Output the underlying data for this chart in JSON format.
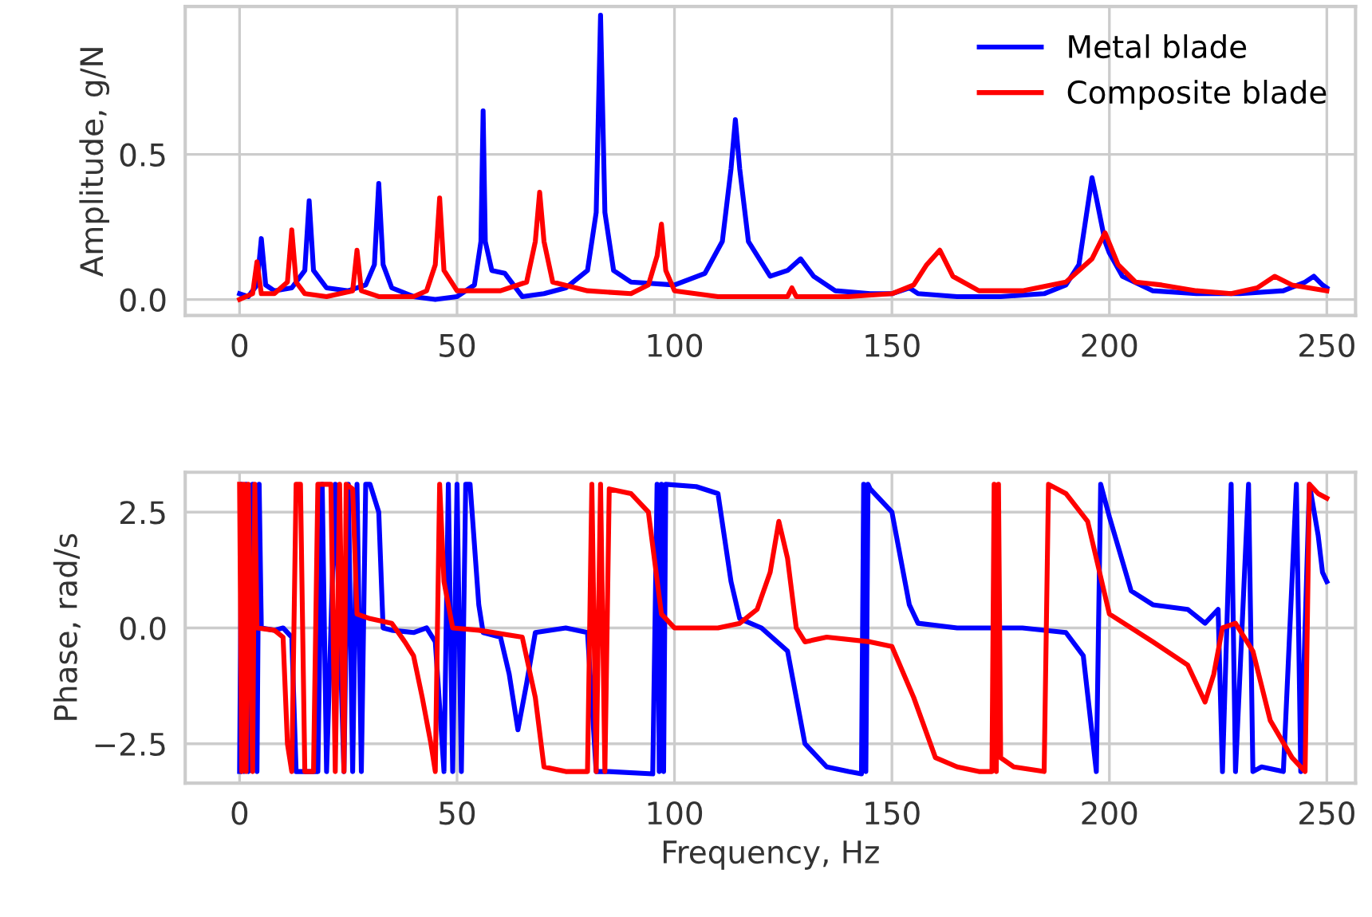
{
  "chart_data": [
    {
      "type": "line",
      "ylabel": "Amplitude, g/N",
      "xlim": [
        -12.5,
        256.6
      ],
      "ylim": [
        -0.055,
        1.01
      ],
      "xticks": [
        0,
        50,
        100,
        150,
        200,
        250
      ],
      "yticks": [
        {
          "value": 0,
          "label": "0.0"
        },
        {
          "value": 0.5,
          "label": "0.5"
        }
      ],
      "grid": true,
      "legend": "top right",
      "line_style": "solid",
      "marker": "none",
      "series": [
        {
          "name": "Metal blade",
          "color": "#0000ff",
          "x": [
            0,
            2,
            4,
            5,
            6,
            8,
            12,
            15,
            16,
            17,
            20,
            25,
            29,
            31,
            32,
            33,
            35,
            40,
            45,
            50,
            54,
            55.5,
            56,
            56.5,
            58,
            61,
            63,
            65,
            70,
            75,
            80,
            82,
            83,
            84,
            86,
            90,
            100,
            107,
            111,
            113,
            114,
            115,
            117,
            122,
            126,
            129,
            132,
            137,
            145,
            150,
            154,
            156,
            165,
            175,
            185,
            190,
            193,
            195,
            196,
            197,
            199,
            200,
            203,
            210,
            220,
            230,
            240,
            245,
            247,
            249,
            250
          ],
          "values": [
            0.02,
            0.01,
            0.05,
            0.21,
            0.05,
            0.03,
            0.04,
            0.1,
            0.34,
            0.1,
            0.04,
            0.03,
            0.05,
            0.12,
            0.4,
            0.12,
            0.04,
            0.01,
            0.0,
            0.01,
            0.05,
            0.2,
            0.65,
            0.2,
            0.1,
            0.09,
            0.05,
            0.01,
            0.02,
            0.04,
            0.1,
            0.3,
            0.98,
            0.3,
            0.1,
            0.06,
            0.05,
            0.09,
            0.2,
            0.45,
            0.62,
            0.45,
            0.2,
            0.08,
            0.1,
            0.14,
            0.08,
            0.03,
            0.02,
            0.02,
            0.04,
            0.02,
            0.01,
            0.01,
            0.02,
            0.05,
            0.12,
            0.32,
            0.42,
            0.35,
            0.2,
            0.16,
            0.08,
            0.03,
            0.02,
            0.02,
            0.03,
            0.06,
            0.08,
            0.05,
            0.04
          ]
        },
        {
          "name": "Composite blade",
          "color": "#ff0000",
          "x": [
            0,
            3,
            4,
            5,
            8,
            11,
            12,
            13,
            15,
            20,
            26,
            27,
            28,
            32,
            40,
            43,
            45,
            46,
            47,
            50,
            60,
            66,
            68,
            69,
            70,
            72,
            80,
            90,
            94,
            96,
            97,
            98,
            100,
            110,
            120,
            126,
            127,
            128,
            140,
            150,
            155,
            158,
            161,
            164,
            170,
            180,
            190,
            196,
            199,
            202,
            206,
            212,
            220,
            228,
            234,
            238,
            242,
            250
          ],
          "values": [
            0.0,
            0.02,
            0.13,
            0.02,
            0.02,
            0.06,
            0.24,
            0.06,
            0.02,
            0.01,
            0.03,
            0.17,
            0.03,
            0.01,
            0.01,
            0.03,
            0.12,
            0.35,
            0.1,
            0.03,
            0.03,
            0.06,
            0.2,
            0.37,
            0.2,
            0.06,
            0.03,
            0.02,
            0.05,
            0.15,
            0.26,
            0.1,
            0.03,
            0.01,
            0.01,
            0.01,
            0.04,
            0.01,
            0.01,
            0.02,
            0.05,
            0.12,
            0.17,
            0.08,
            0.03,
            0.03,
            0.06,
            0.14,
            0.23,
            0.12,
            0.06,
            0.05,
            0.03,
            0.02,
            0.04,
            0.08,
            0.05,
            0.03
          ]
        }
      ]
    },
    {
      "type": "line",
      "xlabel": "Frequency, Hz",
      "ylabel": "Phase, rad/s",
      "xlim": [
        -12.5,
        256.6
      ],
      "ylim": [
        -3.35,
        3.36
      ],
      "xticks": [
        0,
        50,
        100,
        150,
        200,
        250
      ],
      "yticks": [
        {
          "value": -2.5,
          "label": "−2.5"
        },
        {
          "value": 0,
          "label": "0.0"
        },
        {
          "value": 2.5,
          "label": "2.5"
        }
      ],
      "grid": true,
      "line_style": "solid",
      "marker": "none",
      "series": [
        {
          "color": "#0000ff",
          "x": [
            0,
            0.5,
            1,
            1.5,
            2,
            3,
            4,
            4.5,
            5,
            8,
            10,
            12,
            13,
            18,
            19,
            20,
            22,
            24,
            25,
            26,
            27,
            28,
            29,
            30,
            32,
            33,
            35,
            40,
            43,
            45,
            47,
            48,
            49,
            50,
            51,
            52,
            53,
            55,
            56,
            60,
            62,
            64,
            66,
            68,
            75,
            80,
            82,
            85,
            95,
            96,
            96.5,
            97,
            97.5,
            98,
            105,
            110,
            113,
            115,
            120,
            126,
            130,
            135,
            140,
            143,
            143.5,
            144,
            144.5,
            145,
            150,
            154,
            156,
            165,
            180,
            190,
            194,
            197,
            198,
            200,
            205,
            210,
            218,
            222,
            225,
            226,
            228,
            229,
            232,
            233,
            235,
            240,
            243,
            244,
            246,
            248,
            249,
            250
          ],
          "values": [
            -3.1,
            3.1,
            -3.1,
            3.1,
            -3.1,
            3.1,
            -3.1,
            3.1,
            0.0,
            -0.05,
            0.0,
            -0.2,
            -3.1,
            -3.1,
            3.1,
            -3.1,
            3.1,
            -3.1,
            3.1,
            -3.1,
            3.1,
            -3.1,
            3.1,
            3.1,
            2.5,
            0.0,
            -0.05,
            -0.1,
            0.0,
            -0.3,
            -3.1,
            3.1,
            -3.1,
            3.1,
            -3.1,
            3.1,
            3.1,
            0.5,
            -0.1,
            -0.2,
            -1.0,
            -2.2,
            -1.2,
            -0.1,
            0.0,
            -0.1,
            -3.1,
            -3.1,
            -3.15,
            3.1,
            -3.1,
            3.1,
            -3.1,
            3.1,
            3.05,
            2.9,
            1.0,
            0.2,
            0.0,
            -0.5,
            -2.5,
            -3.0,
            -3.1,
            -3.15,
            3.1,
            -3.1,
            3.1,
            3.0,
            2.5,
            0.5,
            0.1,
            0.0,
            0.0,
            -0.1,
            -0.6,
            -3.1,
            3.1,
            2.4,
            0.8,
            0.5,
            0.4,
            0.1,
            0.4,
            -3.1,
            3.1,
            -3.1,
            3.1,
            -3.1,
            -3.0,
            -3.1,
            3.1,
            -3.1,
            3.1,
            2.0,
            1.2,
            1.0
          ]
        },
        {
          "color": "#ff0000",
          "x": [
            0,
            0.5,
            1,
            1.5,
            2,
            3,
            3.5,
            4,
            8,
            10,
            11,
            12,
            13,
            14,
            15,
            17,
            18,
            21,
            22,
            23,
            24,
            24.5,
            26,
            27,
            30,
            35,
            38,
            40,
            42,
            44,
            45,
            46,
            47,
            49,
            55,
            65,
            68,
            70,
            75,
            80,
            81,
            82,
            83,
            84,
            85,
            90,
            94,
            97,
            100,
            110,
            115,
            119,
            122,
            124,
            126,
            128,
            130,
            135,
            145,
            150,
            155,
            160,
            165,
            170,
            173,
            173.5,
            174,
            174.5,
            175,
            178,
            185,
            186,
            190,
            195,
            200,
            210,
            218,
            222,
            224,
            226,
            229,
            233,
            237,
            242,
            245,
            246,
            248,
            250
          ],
          "values": [
            3.1,
            -3.1,
            3.1,
            -3.1,
            3.1,
            -3.1,
            3.1,
            0.0,
            -0.05,
            -0.2,
            -2.5,
            -3.1,
            3.1,
            3.1,
            -3.1,
            -3.1,
            3.1,
            3.1,
            -3.1,
            3.1,
            -3.1,
            3.1,
            3.0,
            0.3,
            0.2,
            0.1,
            -0.3,
            -0.6,
            -1.5,
            -2.5,
            -3.1,
            3.1,
            1.0,
            0.0,
            -0.05,
            -0.2,
            -1.5,
            -3.0,
            -3.1,
            -3.1,
            3.1,
            -3.1,
            3.1,
            -3.1,
            3.0,
            2.9,
            2.5,
            0.3,
            0.0,
            0.0,
            0.1,
            0.4,
            1.2,
            2.3,
            1.5,
            0.0,
            -0.3,
            -0.2,
            -0.3,
            -0.4,
            -1.5,
            -2.8,
            -3.0,
            -3.1,
            -3.1,
            3.1,
            -3.1,
            3.1,
            -2.8,
            -3.0,
            -3.1,
            3.1,
            2.9,
            2.3,
            0.3,
            -0.3,
            -0.8,
            -1.6,
            -1.0,
            0.0,
            0.1,
            -0.5,
            -2.0,
            -2.8,
            -3.1,
            3.1,
            2.9,
            2.8
          ]
        }
      ]
    }
  ]
}
